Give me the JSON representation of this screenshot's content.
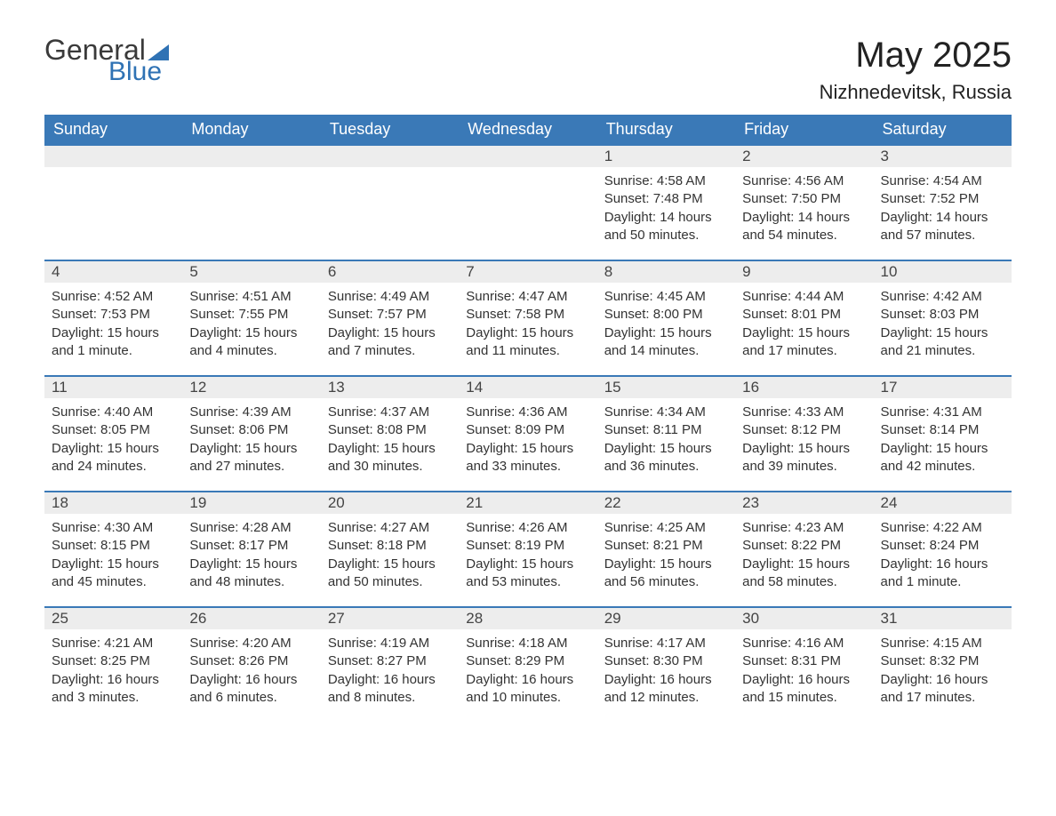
{
  "logo": {
    "word1": "General",
    "word2": "Blue"
  },
  "header": {
    "title": "May 2025",
    "location": "Nizhnedevitsk, Russia"
  },
  "colors": {
    "header_bg": "#3a79b7",
    "header_text": "#ffffff",
    "row_accent": "#3a79b7",
    "daynum_bg": "#ededed",
    "body_text": "#333333",
    "logo_blue": "#2f72b4"
  },
  "weekdays": [
    "Sunday",
    "Monday",
    "Tuesday",
    "Wednesday",
    "Thursday",
    "Friday",
    "Saturday"
  ],
  "weeks": [
    [
      null,
      null,
      null,
      null,
      {
        "n": "1",
        "sunrise": "Sunrise: 4:58 AM",
        "sunset": "Sunset: 7:48 PM",
        "day": "Daylight: 14 hours and 50 minutes."
      },
      {
        "n": "2",
        "sunrise": "Sunrise: 4:56 AM",
        "sunset": "Sunset: 7:50 PM",
        "day": "Daylight: 14 hours and 54 minutes."
      },
      {
        "n": "3",
        "sunrise": "Sunrise: 4:54 AM",
        "sunset": "Sunset: 7:52 PM",
        "day": "Daylight: 14 hours and 57 minutes."
      }
    ],
    [
      {
        "n": "4",
        "sunrise": "Sunrise: 4:52 AM",
        "sunset": "Sunset: 7:53 PM",
        "day": "Daylight: 15 hours and 1 minute."
      },
      {
        "n": "5",
        "sunrise": "Sunrise: 4:51 AM",
        "sunset": "Sunset: 7:55 PM",
        "day": "Daylight: 15 hours and 4 minutes."
      },
      {
        "n": "6",
        "sunrise": "Sunrise: 4:49 AM",
        "sunset": "Sunset: 7:57 PM",
        "day": "Daylight: 15 hours and 7 minutes."
      },
      {
        "n": "7",
        "sunrise": "Sunrise: 4:47 AM",
        "sunset": "Sunset: 7:58 PM",
        "day": "Daylight: 15 hours and 11 minutes."
      },
      {
        "n": "8",
        "sunrise": "Sunrise: 4:45 AM",
        "sunset": "Sunset: 8:00 PM",
        "day": "Daylight: 15 hours and 14 minutes."
      },
      {
        "n": "9",
        "sunrise": "Sunrise: 4:44 AM",
        "sunset": "Sunset: 8:01 PM",
        "day": "Daylight: 15 hours and 17 minutes."
      },
      {
        "n": "10",
        "sunrise": "Sunrise: 4:42 AM",
        "sunset": "Sunset: 8:03 PM",
        "day": "Daylight: 15 hours and 21 minutes."
      }
    ],
    [
      {
        "n": "11",
        "sunrise": "Sunrise: 4:40 AM",
        "sunset": "Sunset: 8:05 PM",
        "day": "Daylight: 15 hours and 24 minutes."
      },
      {
        "n": "12",
        "sunrise": "Sunrise: 4:39 AM",
        "sunset": "Sunset: 8:06 PM",
        "day": "Daylight: 15 hours and 27 minutes."
      },
      {
        "n": "13",
        "sunrise": "Sunrise: 4:37 AM",
        "sunset": "Sunset: 8:08 PM",
        "day": "Daylight: 15 hours and 30 minutes."
      },
      {
        "n": "14",
        "sunrise": "Sunrise: 4:36 AM",
        "sunset": "Sunset: 8:09 PM",
        "day": "Daylight: 15 hours and 33 minutes."
      },
      {
        "n": "15",
        "sunrise": "Sunrise: 4:34 AM",
        "sunset": "Sunset: 8:11 PM",
        "day": "Daylight: 15 hours and 36 minutes."
      },
      {
        "n": "16",
        "sunrise": "Sunrise: 4:33 AM",
        "sunset": "Sunset: 8:12 PM",
        "day": "Daylight: 15 hours and 39 minutes."
      },
      {
        "n": "17",
        "sunrise": "Sunrise: 4:31 AM",
        "sunset": "Sunset: 8:14 PM",
        "day": "Daylight: 15 hours and 42 minutes."
      }
    ],
    [
      {
        "n": "18",
        "sunrise": "Sunrise: 4:30 AM",
        "sunset": "Sunset: 8:15 PM",
        "day": "Daylight: 15 hours and 45 minutes."
      },
      {
        "n": "19",
        "sunrise": "Sunrise: 4:28 AM",
        "sunset": "Sunset: 8:17 PM",
        "day": "Daylight: 15 hours and 48 minutes."
      },
      {
        "n": "20",
        "sunrise": "Sunrise: 4:27 AM",
        "sunset": "Sunset: 8:18 PM",
        "day": "Daylight: 15 hours and 50 minutes."
      },
      {
        "n": "21",
        "sunrise": "Sunrise: 4:26 AM",
        "sunset": "Sunset: 8:19 PM",
        "day": "Daylight: 15 hours and 53 minutes."
      },
      {
        "n": "22",
        "sunrise": "Sunrise: 4:25 AM",
        "sunset": "Sunset: 8:21 PM",
        "day": "Daylight: 15 hours and 56 minutes."
      },
      {
        "n": "23",
        "sunrise": "Sunrise: 4:23 AM",
        "sunset": "Sunset: 8:22 PM",
        "day": "Daylight: 15 hours and 58 minutes."
      },
      {
        "n": "24",
        "sunrise": "Sunrise: 4:22 AM",
        "sunset": "Sunset: 8:24 PM",
        "day": "Daylight: 16 hours and 1 minute."
      }
    ],
    [
      {
        "n": "25",
        "sunrise": "Sunrise: 4:21 AM",
        "sunset": "Sunset: 8:25 PM",
        "day": "Daylight: 16 hours and 3 minutes."
      },
      {
        "n": "26",
        "sunrise": "Sunrise: 4:20 AM",
        "sunset": "Sunset: 8:26 PM",
        "day": "Daylight: 16 hours and 6 minutes."
      },
      {
        "n": "27",
        "sunrise": "Sunrise: 4:19 AM",
        "sunset": "Sunset: 8:27 PM",
        "day": "Daylight: 16 hours and 8 minutes."
      },
      {
        "n": "28",
        "sunrise": "Sunrise: 4:18 AM",
        "sunset": "Sunset: 8:29 PM",
        "day": "Daylight: 16 hours and 10 minutes."
      },
      {
        "n": "29",
        "sunrise": "Sunrise: 4:17 AM",
        "sunset": "Sunset: 8:30 PM",
        "day": "Daylight: 16 hours and 12 minutes."
      },
      {
        "n": "30",
        "sunrise": "Sunrise: 4:16 AM",
        "sunset": "Sunset: 8:31 PM",
        "day": "Daylight: 16 hours and 15 minutes."
      },
      {
        "n": "31",
        "sunrise": "Sunrise: 4:15 AM",
        "sunset": "Sunset: 8:32 PM",
        "day": "Daylight: 16 hours and 17 minutes."
      }
    ]
  ]
}
